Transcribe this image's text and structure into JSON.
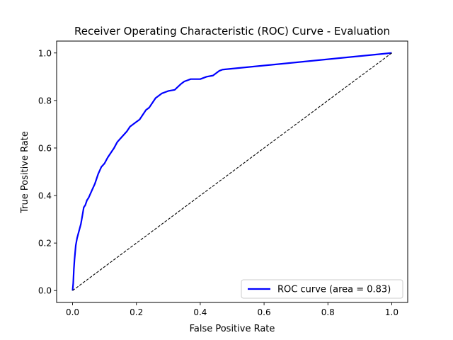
{
  "chart_data": {
    "type": "line",
    "title": "Receiver Operating Characteristic (ROC) Curve - Evaluation",
    "xlabel": "False Positive Rate",
    "ylabel": "True Positive Rate",
    "xlim": [
      -0.05,
      1.05
    ],
    "ylim": [
      -0.05,
      1.05
    ],
    "xticks": [
      "0.0",
      "0.2",
      "0.4",
      "0.6",
      "0.8",
      "1.0"
    ],
    "yticks": [
      "0.0",
      "0.2",
      "0.4",
      "0.6",
      "0.8",
      "1.0"
    ],
    "grid": false,
    "legend_position": "lower right",
    "series": [
      {
        "name": "ROC curve (area = 0.83)",
        "color": "#0000ff",
        "style": "solid",
        "x": [
          0.0,
          0.002,
          0.004,
          0.006,
          0.008,
          0.01,
          0.014,
          0.018,
          0.022,
          0.026,
          0.03,
          0.035,
          0.04,
          0.045,
          0.05,
          0.06,
          0.07,
          0.08,
          0.09,
          0.1,
          0.11,
          0.12,
          0.13,
          0.14,
          0.15,
          0.16,
          0.17,
          0.18,
          0.19,
          0.2,
          0.21,
          0.22,
          0.23,
          0.24,
          0.25,
          0.26,
          0.27,
          0.28,
          0.29,
          0.3,
          0.32,
          0.34,
          0.35,
          0.36,
          0.37,
          0.38,
          0.4,
          0.42,
          0.44,
          0.46,
          0.47,
          1.0
        ],
        "y": [
          0.0,
          0.03,
          0.09,
          0.13,
          0.16,
          0.19,
          0.22,
          0.24,
          0.26,
          0.28,
          0.31,
          0.35,
          0.36,
          0.38,
          0.39,
          0.42,
          0.45,
          0.49,
          0.52,
          0.535,
          0.56,
          0.58,
          0.6,
          0.625,
          0.64,
          0.655,
          0.67,
          0.69,
          0.7,
          0.71,
          0.72,
          0.74,
          0.76,
          0.77,
          0.79,
          0.81,
          0.82,
          0.83,
          0.835,
          0.84,
          0.845,
          0.87,
          0.88,
          0.885,
          0.89,
          0.89,
          0.89,
          0.9,
          0.905,
          0.925,
          0.93,
          1.0
        ]
      },
      {
        "name": "",
        "color": "#000000",
        "style": "dashed",
        "x": [
          0.0,
          1.0
        ],
        "y": [
          0.0,
          1.0
        ]
      }
    ]
  }
}
